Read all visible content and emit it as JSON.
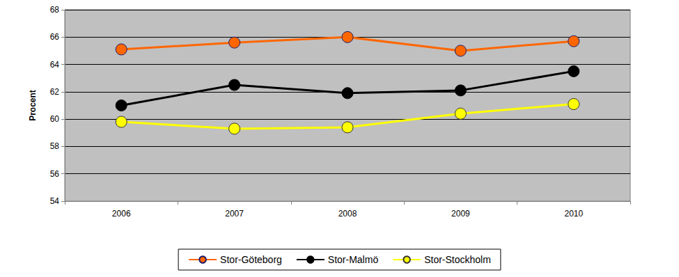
{
  "chart_data": {
    "type": "line",
    "y_label": "Procent",
    "categories": [
      "2006",
      "2007",
      "2008",
      "2009",
      "2010"
    ],
    "series": [
      {
        "name": "Stor-Göteborg",
        "color": "#FF6600",
        "values": [
          65.1,
          65.6,
          66.0,
          65.0,
          65.7
        ]
      },
      {
        "name": "Stor-Malmö",
        "color": "#000000",
        "values": [
          61.0,
          62.5,
          61.9,
          62.1,
          63.5
        ]
      },
      {
        "name": "Stor-Stockholm",
        "color": "#FFFF00",
        "values": [
          59.8,
          59.3,
          59.4,
          60.4,
          61.1
        ]
      }
    ],
    "ylim": [
      54,
      68
    ],
    "yticks": [
      54,
      56,
      58,
      60,
      62,
      64,
      66,
      68
    ],
    "grid": true,
    "legend": "bottom",
    "marker": "circle"
  }
}
